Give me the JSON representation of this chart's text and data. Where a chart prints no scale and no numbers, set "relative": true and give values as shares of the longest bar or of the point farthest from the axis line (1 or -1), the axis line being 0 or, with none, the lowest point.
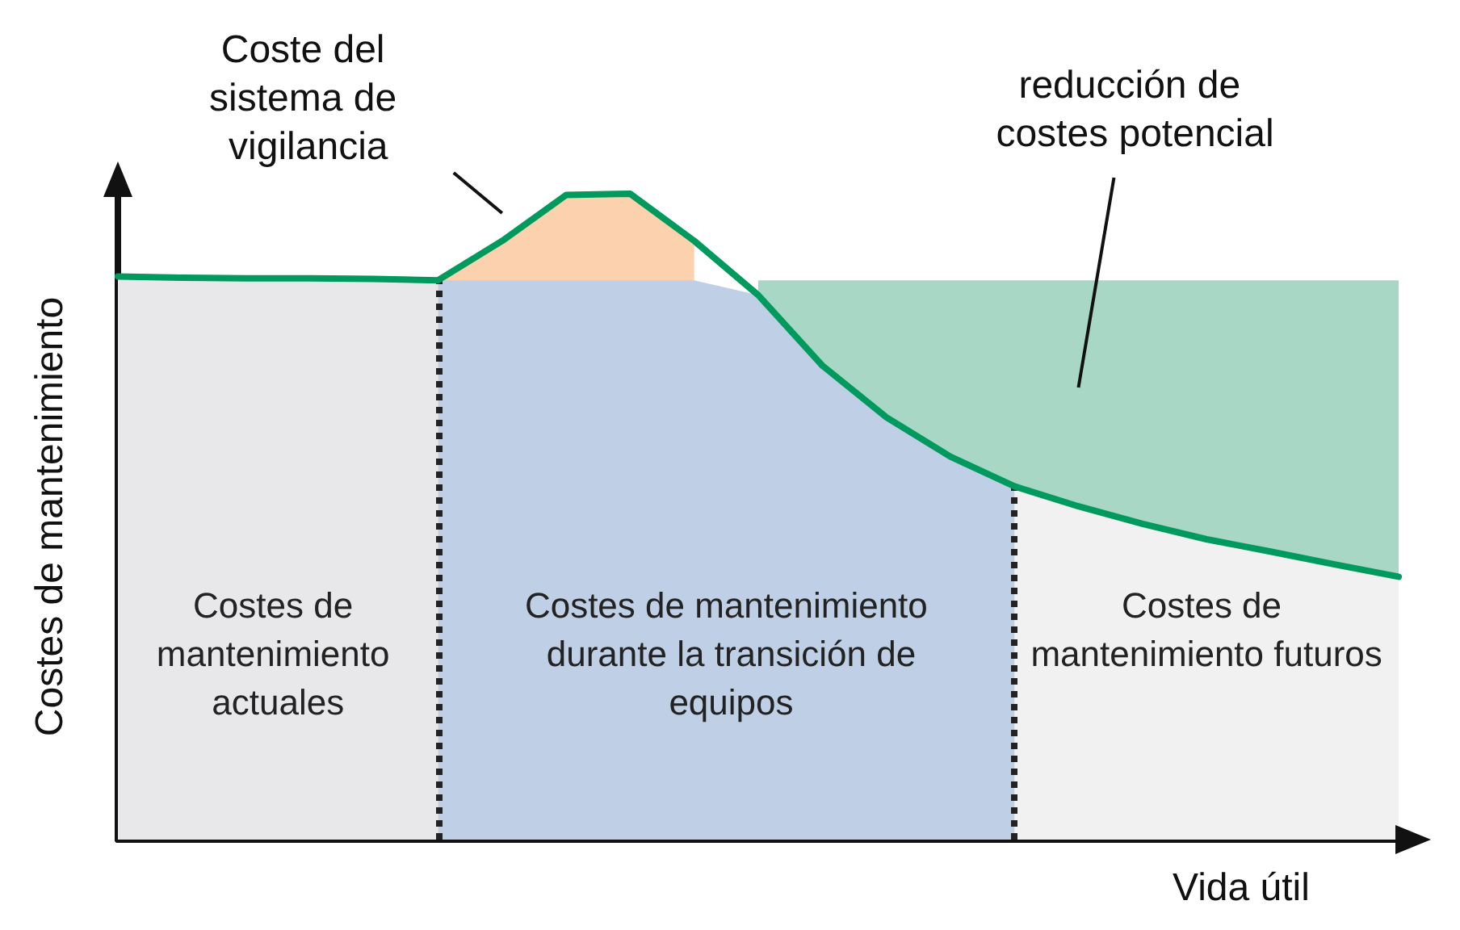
{
  "chart_data": {
    "type": "line",
    "relative": true,
    "xlabel": "Vida útil",
    "ylabel": "Costes de mantenimiento",
    "grid": false,
    "legend": false,
    "marker": "none",
    "line_style": "solid",
    "categories": [
      null,
      null,
      null,
      null,
      null,
      null,
      null,
      null,
      null,
      null,
      null,
      null,
      null,
      null,
      null,
      null,
      null,
      null,
      null,
      null,
      null
    ],
    "series": [
      {
        "type": "area",
        "color": "#fbd2ad",
        "values": [
          null,
          null,
          null,
          null,
          null,
          0.866,
          0.927,
          0.998,
          1.0,
          0.927,
          null,
          null,
          null,
          null,
          null,
          null,
          null,
          null,
          null,
          null,
          null
        ]
      },
      {
        "type": "area",
        "color": "#a8d8c5",
        "values": [
          null,
          null,
          null,
          null,
          null,
          null,
          null,
          null,
          null,
          null,
          0.866,
          0.866,
          0.866,
          0.866,
          0.866,
          0.866,
          0.866,
          0.866,
          0.866,
          0.866,
          0.866
        ]
      },
      {
        "type": "area",
        "name": "Costes de mantenimiento actuales",
        "color": "#e8e8ea",
        "values": [
          0.872,
          0.87,
          0.869,
          0.869,
          0.868,
          0.866,
          null,
          null,
          null,
          null,
          null,
          null,
          null,
          null,
          null,
          null,
          null,
          null,
          null,
          null,
          null
        ]
      },
      {
        "type": "area",
        "name": "Costes de mantenimiento durante la transición de equipos",
        "color": "#bfd0e6",
        "line_style": "dotted",
        "values": [
          null,
          null,
          null,
          null,
          null,
          0.866,
          0.866,
          0.866,
          0.866,
          0.866,
          0.843,
          0.734,
          0.654,
          0.593,
          0.547,
          null,
          null,
          null,
          null,
          null,
          null
        ]
      },
      {
        "type": "area",
        "name": "Costes de mantenimiento futuros",
        "color": "#f1f1f1",
        "line_style": "dotted",
        "values": [
          null,
          null,
          null,
          null,
          null,
          null,
          null,
          null,
          null,
          null,
          null,
          null,
          null,
          null,
          0.547,
          0.516,
          0.489,
          0.465,
          0.446,
          0.426,
          0.407
        ]
      },
      {
        "color": "#009a5f",
        "values": [
          0.872,
          0.87,
          0.869,
          0.869,
          0.868,
          0.866,
          0.927,
          0.998,
          1.0,
          0.927,
          0.843,
          0.734,
          0.654,
          0.593,
          0.547,
          0.516,
          0.489,
          0.465,
          0.446,
          0.426,
          0.407
        ]
      }
    ],
    "annotations": [
      "Coste del sistema de vigilancia",
      "reducción de costes potencial"
    ]
  }
}
